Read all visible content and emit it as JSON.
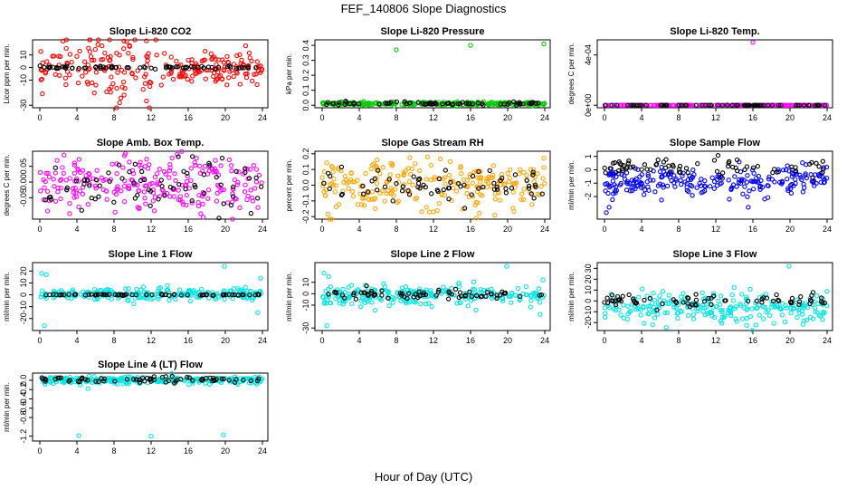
{
  "figure": {
    "title": "FEF_140806  Slope Diagnostics",
    "xlabel": "Hour of Day (UTC)"
  },
  "colors": {
    "red": "#ff0000",
    "green": "#00cc00",
    "magenta": "#ff00ff",
    "orange": "#ffa500",
    "blue": "#0000ff",
    "cyan": "#00e5e5",
    "black": "#000000"
  },
  "chart_data": [
    {
      "type": "scatter",
      "title": "Slope Li-820 CO2",
      "ylabel": "Licor ppm per min.",
      "xlim": [
        0,
        24
      ],
      "ylim": [
        -30,
        20
      ],
      "xticks": [
        "0",
        "4",
        "8",
        "12",
        "16",
        "20",
        "24"
      ],
      "yticks": [
        "-30",
        "-10",
        "0",
        "10"
      ],
      "series": [
        {
          "name": "all",
          "color": "red",
          "spread": 6,
          "spread2": 14,
          "x2": [
            2.5,
            13
          ],
          "outliers": [
            [
              2.5,
              21
            ],
            [
              8.6,
              -28
            ],
            [
              13.1,
              -14
            ],
            [
              4.3,
              13
            ]
          ]
        },
        {
          "name": "selected",
          "color": "black",
          "center": 0,
          "spread": 0.5
        }
      ]
    },
    {
      "type": "scatter",
      "title": "Slope Li-820 Pressure",
      "ylabel": "kPa per min.",
      "xlim": [
        0,
        24
      ],
      "ylim": [
        0,
        0.42
      ],
      "xticks": [
        "0",
        "4",
        "8",
        "12",
        "16",
        "20",
        "24"
      ],
      "yticks": [
        "0.0",
        "0.1",
        "0.2",
        "0.3",
        "0.4"
      ],
      "series": [
        {
          "name": "all",
          "color": "green",
          "center": 0.01,
          "spread": 0.006,
          "outliers": [
            [
              8,
              0.37
            ],
            [
              16,
              0.4
            ],
            [
              23.9,
              0.41
            ]
          ]
        },
        {
          "name": "selected",
          "color": "black",
          "center": 0.012,
          "spread": 0.005
        }
      ]
    },
    {
      "type": "scatter",
      "title": "Slope Li-820 Temp.",
      "ylabel": "degrees C per min.",
      "xlim": [
        0,
        24
      ],
      "ylim": [
        0,
        0.0005
      ],
      "xticks": [
        "0",
        "4",
        "8",
        "12",
        "16",
        "20",
        "24"
      ],
      "yticks": [
        "0e+00",
        "4e-04"
      ],
      "series": [
        {
          "name": "all",
          "color": "magenta",
          "center": 0,
          "spread": 0,
          "outliers": [
            [
              16,
              0.0005
            ]
          ]
        },
        {
          "name": "selected",
          "color": "black",
          "center": 0,
          "spread": 0
        }
      ]
    },
    {
      "type": "scatter",
      "title": "Slope Amb. Box Temp.",
      "ylabel": "degrees C per min.",
      "xlim": [
        0,
        24
      ],
      "ylim": [
        -0.11,
        0.09
      ],
      "xticks": [
        "0",
        "4",
        "8",
        "12",
        "16",
        "20",
        "24"
      ],
      "yticks": [
        "0.05",
        "0.00",
        "-0.05"
      ],
      "series": [
        {
          "name": "all",
          "color": "magenta",
          "center": -0.01,
          "spread": 0.045
        },
        {
          "name": "selected",
          "color": "black",
          "center": -0.01,
          "spread": 0.04
        }
      ]
    },
    {
      "type": "scatter",
      "title": "Slope Gas Stream RH",
      "ylabel": "percent per min.",
      "xlim": [
        0,
        24
      ],
      "ylim": [
        -0.2,
        0.2
      ],
      "xticks": [
        "0",
        "4",
        "8",
        "12",
        "16",
        "20",
        "24"
      ],
      "yticks": [
        "-0.2",
        "-0.1",
        "0.0",
        "0.1",
        "0.2"
      ],
      "series": [
        {
          "name": "all",
          "color": "orange",
          "center": 0,
          "spread": 0.08
        },
        {
          "name": "selected",
          "color": "black",
          "center": 0,
          "spread": 0.05
        }
      ]
    },
    {
      "type": "scatter",
      "title": "Slope Sample Flow",
      "ylabel": "ml/min per min.",
      "xlim": [
        0,
        24
      ],
      "ylim": [
        -3.5,
        1.2
      ],
      "xticks": [
        "0",
        "4",
        "8",
        "12",
        "16",
        "20",
        "24"
      ],
      "yticks": [
        "-2",
        "-1",
        "0",
        "1"
      ],
      "series": [
        {
          "name": "all",
          "color": "blue",
          "center": -0.9,
          "spread": 0.55,
          "outliers": [
            [
              0.2,
              -3.2
            ],
            [
              0.5,
              -2.8
            ],
            [
              15.5,
              -2.8
            ]
          ]
        },
        {
          "name": "selected",
          "color": "black",
          "center": 0.2,
          "spread": 0.35
        }
      ]
    },
    {
      "type": "scatter",
      "title": "Slope Line 1 Flow",
      "ylabel": "ml/min per min.",
      "xlim": [
        0,
        24
      ],
      "ylim": [
        -28,
        25
      ],
      "xticks": [
        "0",
        "4",
        "8",
        "12",
        "16",
        "20",
        "24"
      ],
      "yticks": [
        "-20",
        "-10",
        "0",
        "10",
        "20"
      ],
      "series": [
        {
          "name": "all",
          "color": "cyan",
          "center": 0,
          "spread": 2.5,
          "outliers": [
            [
              0.2,
              18
            ],
            [
              0.5,
              -26
            ],
            [
              0.7,
              17
            ],
            [
              19.9,
              24
            ],
            [
              23.8,
              14
            ],
            [
              23.5,
              -15
            ]
          ]
        },
        {
          "name": "selected",
          "color": "black",
          "center": 0,
          "spread": 0.3
        }
      ]
    },
    {
      "type": "scatter",
      "title": "Slope Line 2 Flow",
      "ylabel": "ml/min per min.",
      "xlim": [
        0,
        24
      ],
      "ylim": [
        -30,
        25
      ],
      "xticks": [
        "0",
        "4",
        "8",
        "12",
        "16",
        "20",
        "24"
      ],
      "yticks": [
        "-30",
        "-10",
        "0",
        "10"
      ],
      "series": [
        {
          "name": "all",
          "color": "cyan",
          "center": -1,
          "spread": 4,
          "outliers": [
            [
              0.2,
              18
            ],
            [
              0.5,
              -28
            ],
            [
              0.7,
              15
            ],
            [
              19.9,
              24
            ],
            [
              23.8,
              12
            ],
            [
              23.5,
              -18
            ]
          ]
        },
        {
          "name": "selected",
          "color": "black",
          "center": 0,
          "spread": 2.5
        }
      ]
    },
    {
      "type": "scatter",
      "title": "Slope Line 3 Flow",
      "ylabel": "ml/min per min.",
      "xlim": [
        0,
        24
      ],
      "ylim": [
        -25,
        33
      ],
      "xticks": [
        "0",
        "4",
        "8",
        "12",
        "16",
        "20",
        "24"
      ],
      "yticks": [
        "-20",
        "-10",
        "0",
        "10",
        "20",
        "30"
      ],
      "series": [
        {
          "name": "all",
          "color": "cyan",
          "center": -6,
          "spread": 7,
          "outliers": [
            [
              19.9,
              32
            ],
            [
              5.2,
              -22
            ]
          ]
        },
        {
          "name": "selected",
          "color": "black",
          "center": 0,
          "spread": 3
        }
      ]
    },
    {
      "type": "scatter",
      "title": "Slope Line 4 (LT) Flow",
      "ylabel": "ml/min per min.",
      "xlim": [
        0,
        24
      ],
      "ylim": [
        -1.25,
        0.1
      ],
      "xticks": [
        "0",
        "4",
        "8",
        "12",
        "16",
        "20",
        "24"
      ],
      "yticks": [
        "-1.2",
        "-0.8",
        "-0.6",
        "-0.4",
        "-0.2",
        "0.0"
      ],
      "series": [
        {
          "name": "all",
          "color": "cyan",
          "center": 0,
          "spread": 0.04,
          "outliers": [
            [
              4.2,
              -1.19
            ],
            [
              12,
              -1.2
            ],
            [
              19.8,
              -1.17
            ],
            [
              5.2,
              -0.18
            ]
          ]
        },
        {
          "name": "selected",
          "color": "black",
          "center": 0.01,
          "spread": 0.03
        }
      ]
    }
  ]
}
